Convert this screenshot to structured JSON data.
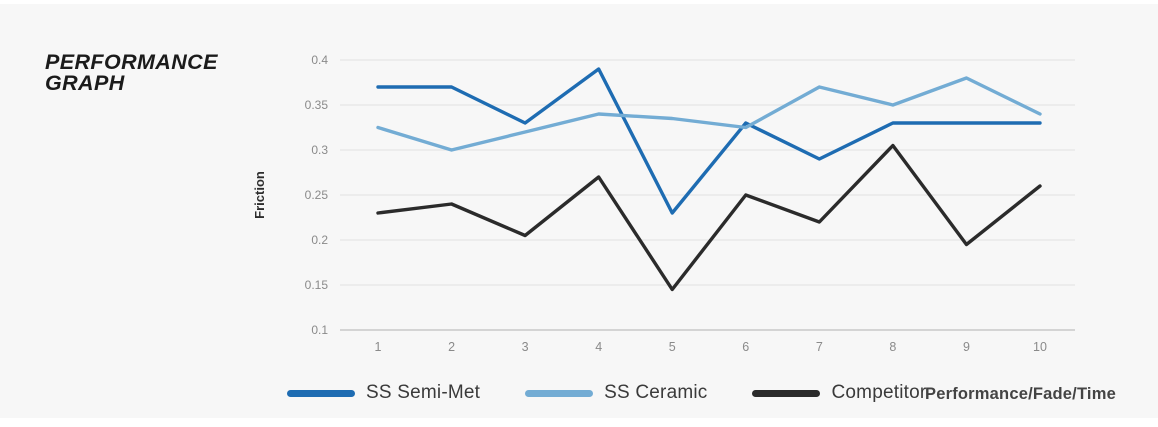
{
  "page": {
    "background": "#f7f7f7",
    "title_line1": "PERFORMANCE",
    "title_line2": "GRAPH"
  },
  "chart_data": {
    "type": "line",
    "title": "Performance Graph",
    "xlabel": "",
    "ylabel": "Friction",
    "x": [
      1,
      2,
      3,
      4,
      5,
      6,
      7,
      8,
      9,
      10
    ],
    "ylim": [
      0.1,
      0.4
    ],
    "yticks": [
      0.4,
      0.35,
      0.3,
      0.25,
      0.2,
      0.15,
      0.1
    ],
    "ytick_labels": [
      "0.4",
      "0.35",
      "0.3",
      "0.25",
      "0.2",
      "0.15",
      "0.1"
    ],
    "grid": true,
    "legend_position": "bottom",
    "series": [
      {
        "name": "SS Semi-Met",
        "color": "#1e6cb2",
        "values": [
          0.37,
          0.37,
          0.33,
          0.39,
          0.23,
          0.33,
          0.29,
          0.33,
          0.33,
          0.33
        ]
      },
      {
        "name": "SS Ceramic",
        "color": "#73acd4",
        "values": [
          0.325,
          0.3,
          0.32,
          0.34,
          0.335,
          0.325,
          0.37,
          0.35,
          0.38,
          0.34
        ]
      },
      {
        "name": "Competitor",
        "color": "#2b2b2b",
        "values": [
          0.23,
          0.24,
          0.205,
          0.27,
          0.145,
          0.25,
          0.22,
          0.305,
          0.195,
          0.26
        ]
      }
    ],
    "footnote": "Performance/Fade/Time",
    "colors": {
      "gridline": "#e6e6e6",
      "axis_line": "#c9c9c9",
      "tick_text": "#8a8a8a",
      "axis_label_text": "#2d2d2d"
    }
  }
}
